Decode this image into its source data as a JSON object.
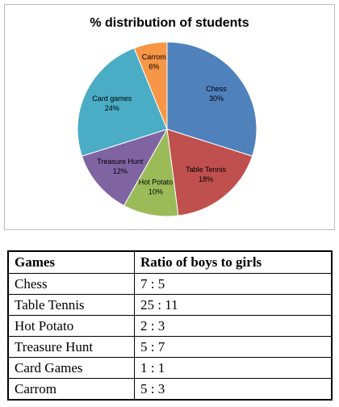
{
  "chart_data": {
    "type": "pie",
    "title": "% distribution of students",
    "categories": [
      "Chess",
      "Table Tennis",
      "Hot Potato",
      "Treasure Hunt",
      "Card games",
      "Carrom"
    ],
    "values": [
      30,
      18,
      10,
      12,
      24,
      6
    ],
    "value_labels": [
      "30%",
      "18%",
      "10%",
      "12%",
      "24%",
      "6%"
    ],
    "colors": [
      "#4f81bd",
      "#c0504d",
      "#9bbb59",
      "#8064a2",
      "#4bacc6",
      "#f79646"
    ]
  },
  "table": {
    "header": [
      "Games",
      "Ratio of boys to girls"
    ],
    "rows": [
      [
        "Chess",
        "7 : 5"
      ],
      [
        "Table Tennis",
        "25 : 11"
      ],
      [
        "Hot Potato",
        "2 : 3"
      ],
      [
        "Treasure Hunt",
        "5 : 7"
      ],
      [
        "Card Games",
        "1 : 1"
      ],
      [
        "Carrom",
        "5 : 3"
      ]
    ]
  }
}
